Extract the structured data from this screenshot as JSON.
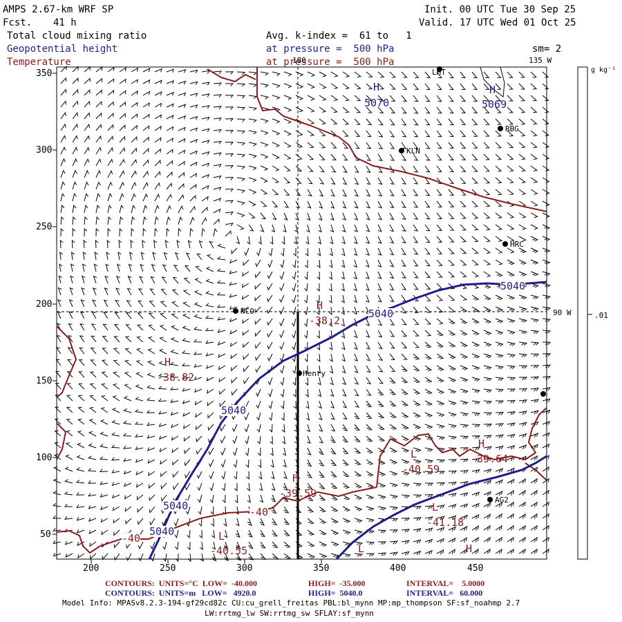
{
  "header": {
    "model": "AMPS 2.67-km WRF SP",
    "fcst_label": "Fcst.",
    "fcst_value": "41 h",
    "init": "Init. 00 UTC Tue 30 Sep 25",
    "valid": "Valid. 17 UTC Wed 01 Oct 25",
    "field1": "Total cloud mixing ratio",
    "field2": "Geopotential height",
    "field3": "Temperature",
    "avg_line": "Avg. k-index =  61 to   1",
    "pressure2": "at pressure =  500 hPa",
    "pressure3": "at pressure =  500 hPa",
    "smooth": "sm= 2"
  },
  "axes": {
    "x_ticks": [
      "200",
      "250",
      "300",
      "350",
      "400",
      "450"
    ],
    "y_ticks": [
      "350",
      "300",
      "250",
      "200",
      "150",
      "100",
      "50"
    ],
    "lon_labels": [
      "180",
      "135 W",
      "90 W"
    ]
  },
  "colorbar": {
    "unit": "g kg⁻¹",
    "value": ".01"
  },
  "stations": [
    {
      "name": "KLN"
    },
    {
      "name": "RBG"
    },
    {
      "name": "HRC"
    },
    {
      "name": "NCO"
    },
    {
      "name": "Henry"
    },
    {
      "name": "AG2"
    },
    {
      "name": "LHT"
    }
  ],
  "labels": {
    "height_contours": [
      "5070",
      "5069",
      "5040",
      "5040",
      "5040",
      "5040",
      "5040"
    ],
    "temp_contours": [
      "-38.2",
      "-38.82",
      "-40.59",
      "-39.64",
      "-39.59",
      "-40",
      "-40",
      "-40.55",
      "-41.18"
    ],
    "highs_lows": [
      "H",
      "H",
      "H",
      "H",
      "H",
      "H",
      "H",
      "L",
      "L",
      "L",
      "L"
    ]
  },
  "footer": {
    "line1_label": "CONTOURS:  UNITS=°C  LOW=  -40.000",
    "line1_high": "HIGH=  -35.000",
    "line1_int": "INTERVAL=    5.0000",
    "line2_label": "CONTOURS:  UNITS=m   LOW=   4920.0",
    "line2_high": "HIGH=  5040.0",
    "line2_int": "INTERVAL=   60.000",
    "info1": "Model Info: MPASv8.2.3-194-gf29cd82c CU:cu_grell_freitas PBL:bl_mynn MP:mp_thompson SF:sf_noahmp 2.7",
    "info2": "LW:rrtmg_lw SW:rrtmg_sw SFLAY:sf_mynn"
  },
  "colors": {
    "height": "#1e1e8c",
    "temperature": "#8b1a1a",
    "wind": "#000000"
  }
}
